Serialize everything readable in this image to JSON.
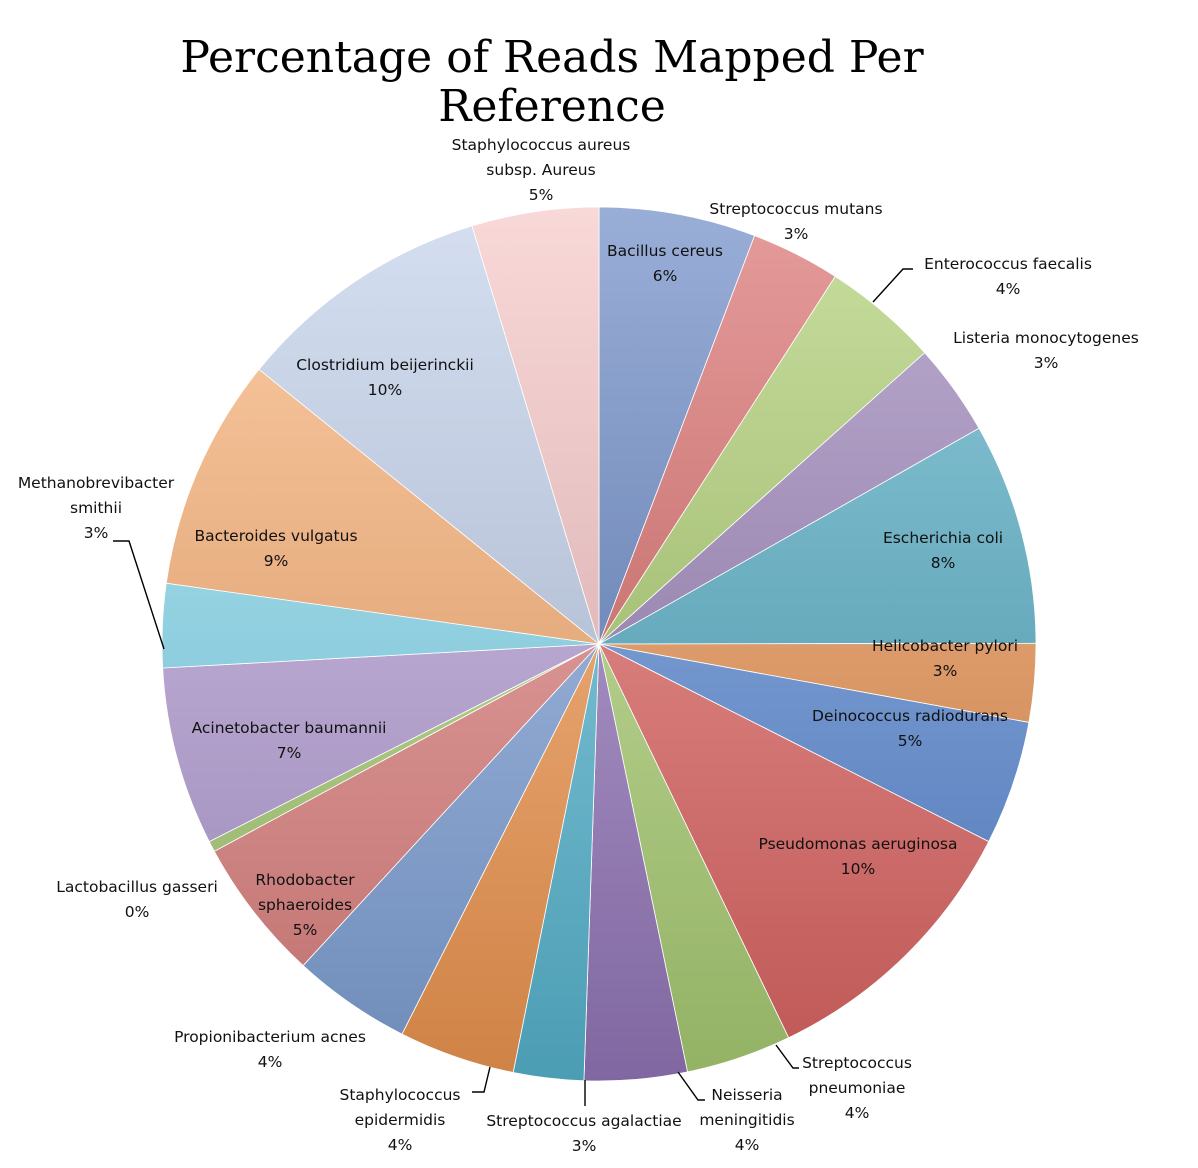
{
  "chart_data": {
    "type": "pie",
    "title_lines": [
      "Percentage of Reads Mapped Per",
      "Reference"
    ],
    "value_unit": "%",
    "slices": [
      {
        "lines": [
          "Bacillus cereus"
        ],
        "pct": "6%",
        "value": 5.8,
        "color": "#5b7dbf"
      },
      {
        "lines": [
          "Streptococcus mutans"
        ],
        "pct": "3%",
        "value": 3.3,
        "color": "#d5605e"
      },
      {
        "lines": [
          "Enterococcus faecalis"
        ],
        "pct": "4%",
        "value": 4.3,
        "color": "#a6c964"
      },
      {
        "lines": [
          "Listeria monocytogenes"
        ],
        "pct": "3%",
        "value": 3.4,
        "color": "#957ab5"
      },
      {
        "lines": [
          "Escherichia coli"
        ],
        "pct": "8%",
        "value": 8.2,
        "color": "#4ba9c3"
      },
      {
        "lines": [
          "Helicobacter pylori"
        ],
        "pct": "3%",
        "value": 2.9,
        "color": "#ef9451"
      },
      {
        "lines": [
          "Deinococcus radiodurans"
        ],
        "pct": "5%",
        "value": 4.6,
        "color": "#5d8edb"
      },
      {
        "lines": [
          "Pseudomonas aeruginosa"
        ],
        "pct": "10%",
        "value": 10.4,
        "color": "#e86a68"
      },
      {
        "lines": [
          "Streptococcus",
          "pneumoniae"
        ],
        "pct": "4%",
        "value": 3.9,
        "color": "#b3d97a"
      },
      {
        "lines": [
          "Neisseria",
          "meningitidis"
        ],
        "pct": "4%",
        "value": 3.8,
        "color": "#9c7ec4"
      },
      {
        "lines": [
          "Streptococcus agalactiae"
        ],
        "pct": "3%",
        "value": 2.6,
        "color": "#5cbfdb"
      },
      {
        "lines": [
          "Staphylococcus",
          "epidermidis"
        ],
        "pct": "4%",
        "value": 4.3,
        "color": "#fc9f54"
      },
      {
        "lines": [
          "Propionibacterium acnes"
        ],
        "pct": "4%",
        "value": 4.4,
        "color": "#86a9e2"
      },
      {
        "lines": [
          "Rhodobacter",
          "sphaeroides"
        ],
        "pct": "5%",
        "value": 5.3,
        "color": "#e98886"
      },
      {
        "lines": [
          "Lactobacillus gasseri"
        ],
        "pct": "0%",
        "value": 0.4,
        "color": "#aed579"
      },
      {
        "lines": [
          "Acinetobacter baumannii"
        ],
        "pct": "7%",
        "value": 6.6,
        "color": "#bba3dd"
      },
      {
        "lines": [
          "Methanobrevibacter",
          "smithii"
        ],
        "pct": "3%",
        "value": 3.1,
        "color": "#84dcf2"
      },
      {
        "lines": [
          "Bacteroides vulgatus"
        ],
        "pct": "9%",
        "value": 8.6,
        "color": "#fbac6c"
      },
      {
        "lines": [
          "Clostridium beijerinckii"
        ],
        "pct": "10%",
        "value": 9.5,
        "color": "#bccce9"
      },
      {
        "lines": [
          "Staphylococcus aureus",
          "subsp. Aureus"
        ],
        "pct": "5%",
        "value": 4.7,
        "color": "#f6c0c0"
      }
    ]
  }
}
